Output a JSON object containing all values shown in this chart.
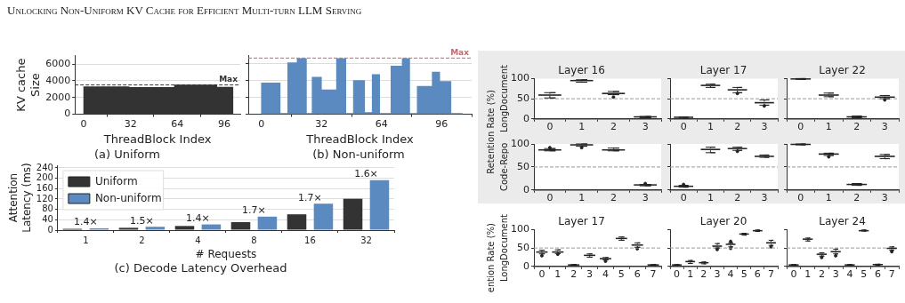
{
  "chart_data": [
    {
      "type": "other",
      "title": "Unlocking Non-Uniform KV Cache for Efficient Multi-turn LLM Serving"
    },
    {
      "type": "histogram",
      "title": "(a) Uniform",
      "xlabel": "ThreadBlock Index",
      "ylabel": "KV cache\nSize",
      "bins": [
        0,
        31,
        62,
        91,
        102
      ],
      "values": [
        3300,
        3200,
        3500,
        3250
      ],
      "color": "#333333",
      "xlim": [
        -6,
        107
      ],
      "xticks": [
        0,
        32,
        64,
        96
      ],
      "ylim": [
        0,
        7000
      ],
      "yticks": [
        0,
        2000,
        4000,
        6000
      ],
      "grid": "y",
      "ref_lines": [
        {
          "axis": "y",
          "value": 3500,
          "label": "Max",
          "color": "#333333",
          "line_style": "dashed"
        }
      ]
    },
    {
      "type": "histogram",
      "title": "(b) Non-uniform",
      "xlabel": "ThreadBlock Index",
      "bins": [
        0,
        10,
        14,
        19,
        24,
        27,
        32,
        40,
        45,
        49,
        55,
        59,
        63,
        69,
        75,
        79,
        83,
        91,
        95,
        101,
        107
      ],
      "values": [
        3700,
        100,
        6100,
        6600,
        100,
        4400,
        2900,
        6600,
        100,
        4000,
        200,
        4700,
        100,
        5700,
        6600,
        100,
        3300,
        5000,
        3900,
        100
      ],
      "color": "#5a8ac0",
      "xlim": [
        -7,
        112
      ],
      "xticks": [
        0,
        32,
        64,
        96
      ],
      "ylim": [
        0,
        7000
      ],
      "yticks": [
        0,
        2000,
        4000,
        6000
      ],
      "grid": "y",
      "tick_labels": "x",
      "ref_lines": [
        {
          "axis": "y",
          "value": 6650,
          "label": "Max",
          "color": "#d9606a",
          "line_style": "dashed"
        }
      ]
    },
    {
      "type": "bar",
      "title": "(c) Decode Latency Overhead",
      "xlabel": "# Requests",
      "ylabel": "Attention\nLatency (ms)",
      "categories": [
        "1",
        "2",
        "4",
        "8",
        "16",
        "32"
      ],
      "series": [
        {
          "name": "Uniform",
          "color": "#333333",
          "values": [
            5,
            9,
            16,
            31,
            61,
            121
          ]
        },
        {
          "name": "Non-uniform",
          "color": "#5a8ac0",
          "values": [
            7,
            13,
            22,
            52,
            102,
            193
          ]
        }
      ],
      "ylim": [
        0,
        250
      ],
      "yticks": [
        0,
        40,
        80,
        120,
        160,
        200,
        240
      ],
      "grid": "y",
      "legend": "top left",
      "annotations": [
        "1.4×",
        "1.5×",
        "1.4×",
        "1.7×",
        "1.7×",
        "1.6×"
      ]
    },
    {
      "type": "box",
      "title": "Layer 16",
      "ylabel": "Retention Rate (%)\nLongDocument",
      "categories": [
        "0",
        "1",
        "2",
        "3"
      ],
      "color": "#cfd6d6",
      "ylim": [
        0,
        100
      ],
      "yticks": [
        0,
        50,
        100
      ],
      "ref_lines": [
        {
          "axis": "y",
          "value": 50,
          "color": "#999999",
          "line_style": "dashed"
        }
      ],
      "boxes": [
        {
          "low": 52,
          "q1": 57,
          "median": 59,
          "q3": 62,
          "high": 65
        },
        {
          "low": 91,
          "q1": 93,
          "median": 95,
          "q3": 96,
          "high": 97
        },
        {
          "low": 60,
          "q1": 61,
          "median": 63,
          "q3": 66,
          "high": 68,
          "outliers": [
            54
          ]
        },
        {
          "low": 3,
          "q1": 4,
          "median": 5,
          "q3": 6,
          "high": 6
        }
      ]
    },
    {
      "type": "box",
      "title": "Layer 17",
      "categories": [
        "0",
        "1",
        "2",
        "3"
      ],
      "color": "#cfd6d6",
      "ylim": [
        0,
        100
      ],
      "yticks": [
        0,
        50,
        100
      ],
      "tick_labels": "x",
      "ref_lines": [
        {
          "axis": "y",
          "value": 50,
          "color": "#999999",
          "line_style": "dashed"
        }
      ],
      "boxes": [
        {
          "low": 2,
          "q1": 3,
          "median": 4,
          "q3": 5,
          "high": 5
        },
        {
          "low": 78,
          "q1": 81,
          "median": 83,
          "q3": 85,
          "high": 86
        },
        {
          "low": 65,
          "q1": 70,
          "median": 72,
          "q3": 75,
          "high": 78,
          "outliers": [
            63
          ]
        },
        {
          "low": 34,
          "q1": 38,
          "median": 40,
          "q3": 43,
          "high": 47,
          "outliers": [
            32
          ]
        }
      ]
    },
    {
      "type": "box",
      "title": "Layer 22",
      "categories": [
        "0",
        "1",
        "2",
        "3"
      ],
      "color": "#cfd6d6",
      "ylim": [
        0,
        100
      ],
      "yticks": [
        0,
        50,
        100
      ],
      "tick_labels": "x",
      "ref_lines": [
        {
          "axis": "y",
          "value": 50,
          "color": "#999999",
          "line_style": "dashed"
        }
      ],
      "boxes": [
        {
          "low": 98,
          "q1": 99,
          "median": 99,
          "q3": 100,
          "high": 100
        },
        {
          "low": 55,
          "q1": 57,
          "median": 59,
          "q3": 62,
          "high": 64
        },
        {
          "low": 3,
          "q1": 4,
          "median": 5,
          "q3": 6,
          "high": 7
        },
        {
          "low": 50,
          "q1": 52,
          "median": 54,
          "q3": 56,
          "high": 58,
          "outliers": [
            47
          ]
        }
      ]
    },
    {
      "type": "box",
      "ylabel": "Code-Repo",
      "categories": [
        "0",
        "1",
        "2",
        "3"
      ],
      "color": "#cfd6d6",
      "ylim": [
        0,
        100
      ],
      "yticks": [
        0,
        50,
        100
      ],
      "ref_lines": [
        {
          "axis": "y",
          "value": 50,
          "color": "#999999",
          "line_style": "dashed"
        }
      ],
      "boxes": [
        {
          "low": 85,
          "q1": 86,
          "median": 87,
          "q3": 89,
          "high": 90,
          "outliers": [
            92
          ]
        },
        {
          "low": 95,
          "q1": 97,
          "median": 98,
          "q3": 99,
          "high": 100,
          "outliers": [
            92
          ]
        },
        {
          "low": 85,
          "q1": 86,
          "median": 87,
          "q3": 89,
          "high": 91
        },
        {
          "low": 9,
          "q1": 10,
          "median": 11,
          "q3": 11,
          "high": 12,
          "outliers": [
            14
          ]
        }
      ]
    },
    {
      "type": "box",
      "categories": [
        "0",
        "1",
        "2",
        "3"
      ],
      "color": "#cfd6d6",
      "ylim": [
        0,
        100
      ],
      "yticks": [
        0,
        50,
        100
      ],
      "tick_labels": "x",
      "ref_lines": [
        {
          "axis": "y",
          "value": 50,
          "color": "#999999",
          "line_style": "dashed"
        }
      ],
      "boxes": [
        {
          "low": 6,
          "q1": 7,
          "median": 8,
          "q3": 9,
          "high": 10,
          "outliers": [
            12
          ]
        },
        {
          "low": 81,
          "q1": 86,
          "median": 88,
          "q3": 91,
          "high": 93
        },
        {
          "low": 86,
          "q1": 88,
          "median": 90,
          "q3": 91,
          "high": 93,
          "outliers": [
            84
          ]
        },
        {
          "low": 71,
          "q1": 72,
          "median": 73,
          "q3": 75,
          "high": 76
        }
      ]
    },
    {
      "type": "box",
      "categories": [
        "0",
        "1",
        "2",
        "3"
      ],
      "color": "#cfd6d6",
      "ylim": [
        0,
        100
      ],
      "yticks": [
        0,
        50,
        100
      ],
      "tick_labels": "x",
      "ref_lines": [
        {
          "axis": "y",
          "value": 50,
          "color": "#999999",
          "line_style": "dashed"
        }
      ],
      "boxes": [
        {
          "low": 98,
          "q1": 99,
          "median": 99,
          "q3": 100,
          "high": 100
        },
        {
          "low": 75,
          "q1": 76,
          "median": 78,
          "q3": 80,
          "high": 80,
          "outliers": [
            72
          ]
        },
        {
          "low": 10,
          "q1": 11,
          "median": 12,
          "q3": 13,
          "high": 14
        },
        {
          "low": 68,
          "q1": 71,
          "median": 73,
          "q3": 75,
          "high": 77
        }
      ]
    },
    {
      "type": "box",
      "title": "Layer 17",
      "ylabel": "ention Rate (%)\nLongDocument",
      "categories": [
        "0",
        "1",
        "2",
        "3",
        "4",
        "5",
        "6",
        "7"
      ],
      "color": "#cfd6d6",
      "ylim": [
        0,
        100
      ],
      "yticks": [
        0,
        50,
        100
      ],
      "ref_lines": [
        {
          "axis": "y",
          "value": 50,
          "color": "#999999",
          "line_style": "dashed"
        }
      ],
      "boxes": [
        {
          "low": 34,
          "q1": 37,
          "median": 39,
          "q3": 41,
          "high": 44,
          "outliers": [
            29
          ]
        },
        {
          "low": 35,
          "q1": 37,
          "median": 39,
          "q3": 42,
          "high": 45,
          "outliers": [
            33
          ]
        },
        {
          "low": 3,
          "q1": 4,
          "median": 4,
          "q3": 5,
          "high": 5
        },
        {
          "low": 25,
          "q1": 28,
          "median": 30,
          "q3": 32,
          "high": 34
        },
        {
          "low": 18,
          "q1": 20,
          "median": 21,
          "q3": 23,
          "high": 24,
          "outliers": [
            14
          ]
        },
        {
          "low": 71,
          "q1": 74,
          "median": 76,
          "q3": 78,
          "high": 80
        },
        {
          "low": 52,
          "q1": 56,
          "median": 58,
          "q3": 61,
          "high": 64,
          "outliers": [
            48
          ]
        },
        {
          "low": 3,
          "q1": 4,
          "median": 4,
          "q3": 5,
          "high": 5
        }
      ]
    },
    {
      "type": "box",
      "title": "Layer 20",
      "categories": [
        "0",
        "1",
        "2",
        "3",
        "4",
        "5",
        "6",
        "7"
      ],
      "color": "#cfd6d6",
      "ylim": [
        0,
        100
      ],
      "yticks": [
        0,
        50,
        100
      ],
      "tick_labels": "x",
      "ref_lines": [
        {
          "axis": "y",
          "value": 50,
          "color": "#999999",
          "line_style": "dashed"
        }
      ],
      "boxes": [
        {
          "low": 3,
          "q1": 4,
          "median": 4,
          "q3": 5,
          "high": 5
        },
        {
          "low": 8,
          "q1": 11,
          "median": 13,
          "q3": 15,
          "high": 16
        },
        {
          "low": 7,
          "q1": 9,
          "median": 10,
          "q3": 11,
          "high": 12
        },
        {
          "low": 50,
          "q1": 53,
          "median": 55,
          "q3": 58,
          "high": 62,
          "outliers": [
            46
          ]
        },
        {
          "low": 53,
          "q1": 58,
          "median": 60,
          "q3": 62,
          "high": 64,
          "outliers": [
            49,
            68
          ]
        },
        {
          "low": 85,
          "q1": 87,
          "median": 88,
          "q3": 89,
          "high": 90
        },
        {
          "low": 95,
          "q1": 96,
          "median": 97,
          "q3": 98,
          "high": 99
        },
        {
          "low": 57,
          "q1": 61,
          "median": 64,
          "q3": 67,
          "high": 71,
          "outliers": [
            53
          ]
        }
      ]
    },
    {
      "type": "box",
      "title": "Layer 24",
      "categories": [
        "0",
        "1",
        "2",
        "3",
        "4",
        "5",
        "6",
        "7"
      ],
      "color": "#cfd6d6",
      "ylim": [
        0,
        100
      ],
      "yticks": [
        0,
        50,
        100
      ],
      "tick_labels": "x",
      "ref_lines": [
        {
          "axis": "y",
          "value": 50,
          "color": "#999999",
          "line_style": "dashed"
        }
      ],
      "boxes": [
        {
          "low": 3,
          "q1": 4,
          "median": 4,
          "q3": 5,
          "high": 5
        },
        {
          "low": 69,
          "q1": 72,
          "median": 74,
          "q3": 75,
          "high": 77
        },
        {
          "low": 28,
          "q1": 31,
          "median": 33,
          "q3": 35,
          "high": 37,
          "outliers": [
            24
          ]
        },
        {
          "low": 34,
          "q1": 37,
          "median": 40,
          "q3": 42,
          "high": 47,
          "outliers": [
            29
          ]
        },
        {
          "low": 3,
          "q1": 4,
          "median": 4,
          "q3": 5,
          "high": 5
        },
        {
          "low": 96,
          "q1": 97,
          "median": 97,
          "q3": 98,
          "high": 99
        },
        {
          "low": 3,
          "q1": 4,
          "median": 5,
          "q3": 6,
          "high": 6
        },
        {
          "low": 44,
          "q1": 47,
          "median": 49,
          "q3": 51,
          "high": 53,
          "outliers": [
            40
          ]
        }
      ]
    }
  ]
}
